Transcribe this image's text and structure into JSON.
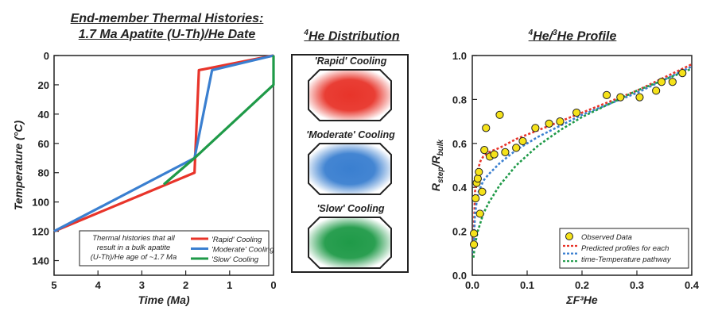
{
  "panel_a": {
    "title_line1": "End-member Thermal Histories:",
    "title_line2": "1.7 Ma Apatite (U-Th)/He Date"
  },
  "panel_b": {
    "title": "4He Distribution",
    "title_sup": "4",
    "title_main": "He Distribution",
    "blobs": [
      {
        "label": "'Rapid' Cooling",
        "color": "#e8342a"
      },
      {
        "label": "'Moderate' Cooling",
        "color": "#3a7fd0"
      },
      {
        "label": "'Slow' Cooling",
        "color": "#1f9a48"
      }
    ]
  },
  "panel_c": {
    "title": "4He/3He Profile",
    "title_sup1": "4",
    "title_mid": "He/",
    "title_sup2": "3",
    "title_end": "He Profile"
  },
  "chart_data": [
    {
      "type": "line",
      "title": "End-member Thermal Histories: 1.7 Ma Apatite (U-Th)/He Date",
      "xlabel": "Time (Ma)",
      "ylabel": "Temperature (°C)",
      "xlim": [
        5,
        0
      ],
      "ylim": [
        0,
        150
      ],
      "x_reversed": true,
      "y_reversed": true,
      "xticks": [
        5,
        4,
        3,
        2,
        1,
        0
      ],
      "yticks": [
        0,
        20,
        40,
        60,
        80,
        100,
        120,
        140
      ],
      "grid": false,
      "legend_position": "bottom-right",
      "legend_note": "Thermal histories that all result in a bulk apatite (U-Th)/He age of ~1.7 Ma",
      "series": [
        {
          "name": "'Rapid' Cooling",
          "color": "#e8342a",
          "x": [
            5,
            1.8,
            1.7,
            0
          ],
          "y": [
            120,
            80,
            10,
            0
          ]
        },
        {
          "name": "'Moderate' Cooling",
          "color": "#3a7fd0",
          "x": [
            5,
            1.8,
            1.4,
            0
          ],
          "y": [
            120,
            70,
            10,
            0
          ]
        },
        {
          "name": "'Slow' Cooling",
          "color": "#1f9a48",
          "x": [
            2.5,
            1.8,
            0,
            0
          ],
          "y": [
            88,
            70,
            20,
            0
          ]
        }
      ]
    },
    {
      "type": "scatter",
      "title": "4He/3He Profile",
      "xlabel": "ΣF³He",
      "ylabel": "Rstep/Rbulk",
      "xlim": [
        0,
        0.4
      ],
      "ylim": [
        0,
        1.0
      ],
      "xticks": [
        0.0,
        0.1,
        0.2,
        0.3,
        0.4
      ],
      "yticks": [
        0.0,
        0.2,
        0.4,
        0.6,
        0.8,
        1.0
      ],
      "grid": false,
      "legend_position": "bottom-right",
      "legend": [
        {
          "label": "Observed Data",
          "kind": "marker",
          "color": "#f5e21a"
        },
        {
          "label": "Predicted profiles for each time-Temperature pathway",
          "kind": "dotted",
          "color": "#e8342a"
        }
      ],
      "observed": {
        "name": "Observed Data",
        "x": [
          0.003,
          0.003,
          0.006,
          0.008,
          0.01,
          0.012,
          0.014,
          0.018,
          0.022,
          0.025,
          0.032,
          0.04,
          0.05,
          0.06,
          0.08,
          0.092,
          0.115,
          0.14,
          0.16,
          0.19,
          0.245,
          0.27,
          0.305,
          0.335,
          0.345,
          0.365,
          0.383
        ],
        "y": [
          0.14,
          0.19,
          0.35,
          0.42,
          0.44,
          0.47,
          0.28,
          0.38,
          0.57,
          0.67,
          0.54,
          0.55,
          0.73,
          0.56,
          0.58,
          0.61,
          0.67,
          0.69,
          0.7,
          0.74,
          0.82,
          0.81,
          0.81,
          0.84,
          0.88,
          0.88,
          0.92
        ]
      },
      "predicted": [
        {
          "color": "#e8342a",
          "x": [
            0.002,
            0.005,
            0.01,
            0.015,
            0.02,
            0.03,
            0.05,
            0.08,
            0.12,
            0.16,
            0.2,
            0.25,
            0.3,
            0.35,
            0.4
          ],
          "y": [
            0.14,
            0.38,
            0.48,
            0.52,
            0.54,
            0.56,
            0.58,
            0.62,
            0.66,
            0.7,
            0.74,
            0.79,
            0.84,
            0.9,
            0.96
          ]
        },
        {
          "color": "#3a7fd0",
          "x": [
            0.002,
            0.005,
            0.01,
            0.02,
            0.03,
            0.05,
            0.08,
            0.12,
            0.16,
            0.2,
            0.25,
            0.3,
            0.35,
            0.4
          ],
          "y": [
            0.1,
            0.28,
            0.37,
            0.43,
            0.46,
            0.51,
            0.57,
            0.63,
            0.68,
            0.73,
            0.78,
            0.83,
            0.89,
            0.95
          ]
        },
        {
          "color": "#1f9a48",
          "x": [
            0.002,
            0.005,
            0.01,
            0.02,
            0.03,
            0.05,
            0.08,
            0.12,
            0.16,
            0.2,
            0.25,
            0.3,
            0.35,
            0.4
          ],
          "y": [
            0.08,
            0.14,
            0.2,
            0.28,
            0.33,
            0.41,
            0.5,
            0.59,
            0.66,
            0.72,
            0.78,
            0.84,
            0.89,
            0.94
          ]
        }
      ]
    }
  ]
}
